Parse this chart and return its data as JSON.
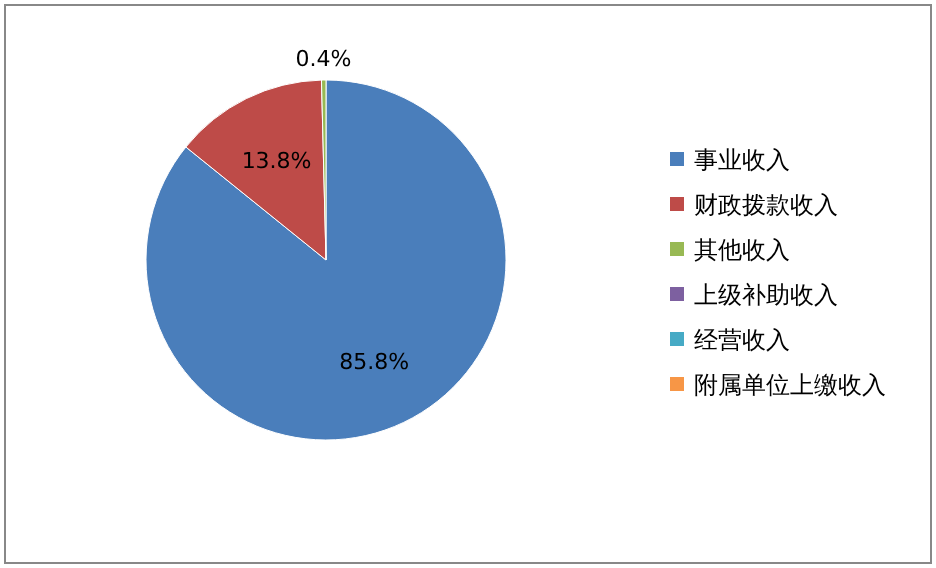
{
  "chart_data": {
    "type": "pie",
    "categories": [
      "事业收入",
      "财政拨款收入",
      "其他收入",
      "上级补助收入",
      "经营收入",
      "附属单位上缴收入"
    ],
    "values": [
      85.8,
      13.8,
      0.4,
      0,
      0,
      0
    ],
    "colors": [
      "#4a7ebb",
      "#be4b48",
      "#98b954",
      "#7d60a0",
      "#46aac5",
      "#f79646"
    ],
    "value_labels": [
      "85.8%",
      "13.8%",
      "0.4%",
      null,
      null,
      null
    ],
    "legend": "right"
  }
}
